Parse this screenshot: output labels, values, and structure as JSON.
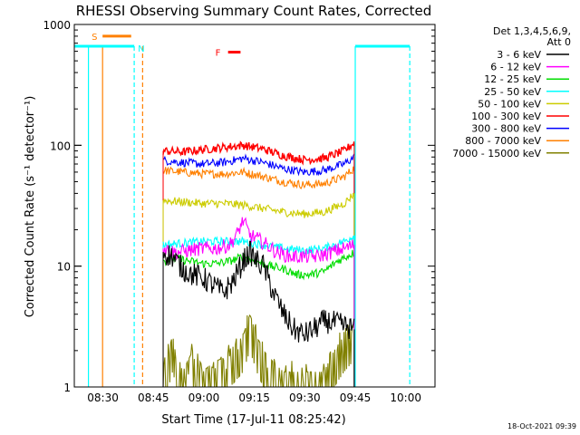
{
  "chart_data": {
    "type": "line",
    "title": "RHESSI Observing Summary Count Rates, Corrected",
    "xlabel": "Start Time (17-Jul-11 08:25:42)",
    "ylabel": "Corrected Count Rate (s⁻¹ detector⁻¹)",
    "yscale": "log",
    "ylim": [
      1,
      1000
    ],
    "xlim_minutes": [
      -4.2,
      103.0
    ],
    "x_tick_labels": [
      "08:30",
      "08:45",
      "09:00",
      "09:15",
      "09:30",
      "09:45",
      "10:00"
    ],
    "x_tick_minutes": [
      4.3,
      19.3,
      34.3,
      49.3,
      64.3,
      79.3,
      94.3
    ],
    "y_tick_labels": [
      "1",
      "10",
      "100",
      "1000"
    ],
    "y_tick_values": [
      1,
      10,
      100,
      1000
    ],
    "legend_header": [
      "Det 1,3,4,5,6,9,",
      "Att 0"
    ],
    "legend_position": "right",
    "data_gap_minutes": [
      [
        0,
        22.0
      ],
      [
        79.3,
        103.0
      ]
    ],
    "series": [
      {
        "name": "3 - 6 keV",
        "color": "#000000",
        "x": [
          22.2,
          25,
          28,
          31,
          34,
          37,
          40,
          43,
          46,
          48,
          50,
          52,
          55,
          58,
          61,
          64,
          67,
          70,
          73,
          76,
          79
        ],
        "y": [
          13,
          12,
          9.5,
          8.5,
          8,
          7,
          6,
          7.5,
          11,
          13,
          11,
          10,
          6,
          4,
          3,
          2.7,
          3,
          3.5,
          3.4,
          3.2,
          3
        ]
      },
      {
        "name": "6 - 12 keV",
        "color": "#ff00ff",
        "x": [
          22.2,
          26,
          30,
          34,
          38,
          42,
          44,
          46,
          48,
          50,
          53,
          56,
          60,
          64,
          68,
          72,
          76,
          79
        ],
        "y": [
          14,
          13,
          13.5,
          14,
          14,
          15,
          18,
          24,
          18,
          17,
          15,
          13,
          12,
          12,
          12,
          13,
          14,
          15
        ]
      },
      {
        "name": "12 - 25 keV",
        "color": "#00dd00",
        "x": [
          22.2,
          26,
          30,
          34,
          38,
          42,
          46,
          50,
          54,
          58,
          62,
          66,
          70,
          74,
          79
        ],
        "y": [
          11,
          11.5,
          11,
          10.5,
          10.5,
          11,
          12,
          11,
          10,
          9.5,
          8.5,
          8.5,
          9,
          11,
          13
        ]
      },
      {
        "name": "25 - 50 keV",
        "color": "#00ffff",
        "x": [
          22.2,
          28,
          34,
          40,
          46,
          52,
          58,
          64,
          70,
          76,
          79
        ],
        "y": [
          15,
          15.5,
          16,
          16,
          16,
          15,
          14,
          13.5,
          14,
          16,
          18
        ]
      },
      {
        "name": "50 - 100 keV",
        "color": "#cccc00",
        "x": [
          22.2,
          28,
          34,
          40,
          46,
          52,
          58,
          64,
          70,
          76,
          79
        ],
        "y": [
          35,
          34,
          33,
          33,
          32,
          30,
          28,
          27,
          28,
          33,
          40
        ]
      },
      {
        "name": "100 - 300 keV",
        "color": "#ff0000",
        "x": [
          22.2,
          28,
          34,
          40,
          46,
          52,
          58,
          64,
          70,
          76,
          79
        ],
        "y": [
          90,
          88,
          92,
          96,
          100,
          93,
          82,
          76,
          78,
          90,
          105
        ]
      },
      {
        "name": "300 - 800 keV",
        "color": "#0000ff",
        "x": [
          22.2,
          28,
          34,
          40,
          46,
          52,
          58,
          64,
          70,
          76,
          79
        ],
        "y": [
          75,
          72,
          70,
          72,
          78,
          72,
          64,
          60,
          62,
          70,
          80
        ]
      },
      {
        "name": "800 - 7000 keV",
        "color": "#ff8000",
        "x": [
          22.2,
          28,
          34,
          40,
          46,
          52,
          58,
          64,
          70,
          76,
          79
        ],
        "y": [
          62,
          60,
          58,
          58,
          60,
          55,
          50,
          47,
          48,
          55,
          65
        ]
      },
      {
        "name": "7000 - 15000 keV",
        "color": "#808000",
        "x": [
          22.2,
          25,
          28,
          31,
          34,
          37,
          40,
          43,
          46,
          48,
          50,
          52,
          55,
          58,
          61,
          64,
          67,
          70,
          73,
          76,
          79
        ],
        "y": [
          1,
          2,
          1,
          1.5,
          1,
          1.2,
          1.3,
          1.6,
          2,
          3,
          2,
          1.5,
          1.2,
          1,
          1,
          1,
          1,
          1,
          1.5,
          2,
          2.5
        ]
      }
    ],
    "flag_bars": [
      {
        "label": "S",
        "color": "#ff8000",
        "x_start": 4.2,
        "x_end": 12.7,
        "y": 800,
        "label_color": "#ff8000"
      },
      {
        "label": "N",
        "color": "#00ffff",
        "x_start": 0.0,
        "x_end": 13.6,
        "y": 660,
        "label_color": "#00ffff"
      },
      {
        "label": "F",
        "color": "#ff0000",
        "x_start": 41.5,
        "x_end": 45.2,
        "y": 590,
        "label_color": "#ff0000"
      }
    ],
    "right_saa_bar": {
      "color": "#00ffff",
      "x_start": 79.3,
      "x_end": 95.5,
      "y": 660
    },
    "vertical_lines": [
      {
        "x": 0.0,
        "color": "#00ffff",
        "style": "solid"
      },
      {
        "x": 4.2,
        "color": "#ff8000",
        "style": "solid"
      },
      {
        "x": 13.6,
        "color": "#00ffff",
        "style": "dashed"
      },
      {
        "x": 16.1,
        "color": "#ff8000",
        "style": "dashed"
      },
      {
        "x": 79.3,
        "color": "#00ffff",
        "style": "solid"
      },
      {
        "x": 95.5,
        "color": "#00ffff",
        "style": "dashed"
      }
    ]
  },
  "footer": {
    "timestamp": "18-Oct-2021 09:39"
  }
}
